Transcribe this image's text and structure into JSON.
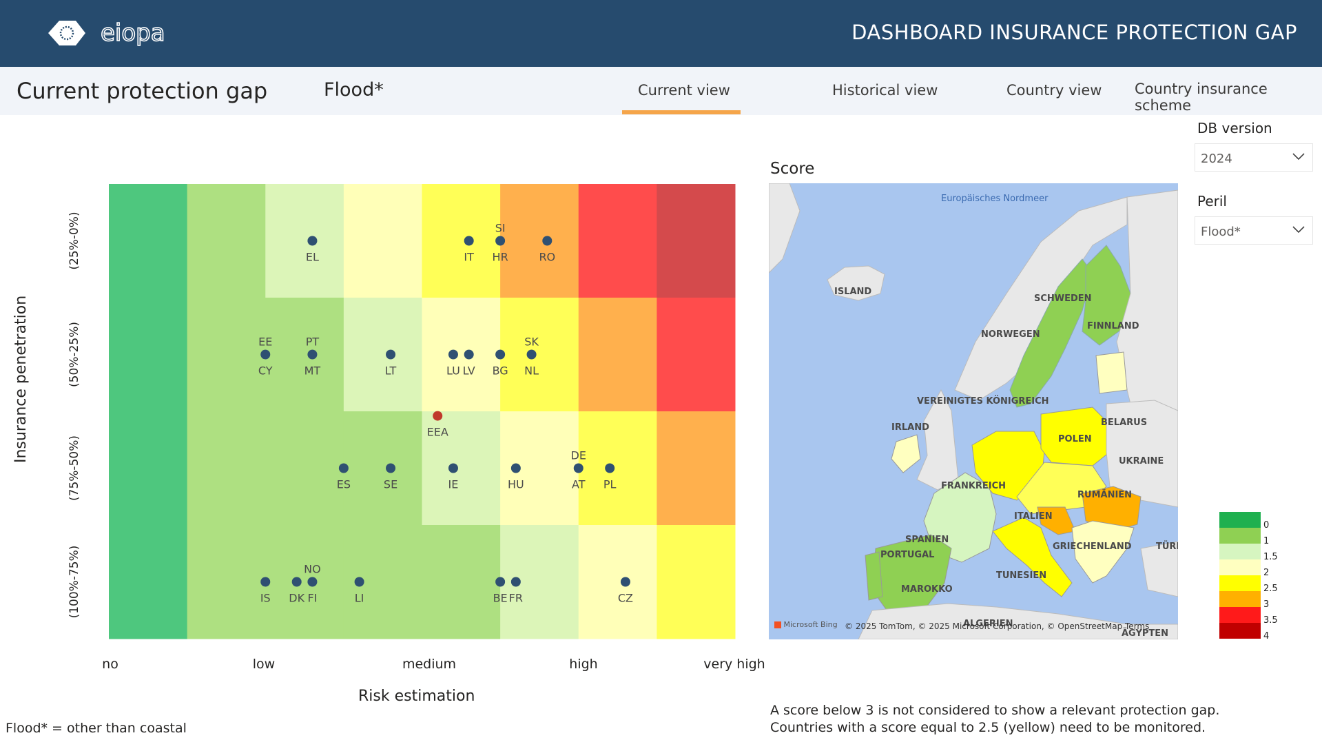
{
  "header": {
    "title": "DASHBOARD INSURANCE PROTECTION GAP",
    "logo_text": "eiopa"
  },
  "nav": {
    "page_title": "Current protection gap",
    "peril_title": "Flood*",
    "tabs": [
      {
        "label": "Current view",
        "active": true
      },
      {
        "label": "Historical view",
        "active": false
      },
      {
        "label": "Country view",
        "active": false
      },
      {
        "label": "Country insurance scheme",
        "active": false
      }
    ]
  },
  "chart_data": {
    "type": "heatmap",
    "xlabel": "Risk estimation",
    "ylabel": "Insurance penetration",
    "x_ticks": [
      "no",
      "low",
      "medium",
      "high",
      "very high"
    ],
    "y_ticks": [
      "(25%-0%)",
      "(50%-25%)",
      "(75%-50%)",
      "(100%-75%)"
    ],
    "colors": {
      "0": "#4ec77e",
      "1": "#aee081",
      "1.5": "#dcf5b8",
      "2": "#ffffb8",
      "2.5": "#ffff57",
      "3": "#ffb04d",
      "3.5": "#ff4c4c",
      "4": "#d44a4c"
    },
    "grid_rows": [
      [
        0,
        1,
        1.5,
        2,
        2.5,
        3,
        3.5,
        4
      ],
      [
        0,
        1,
        1,
        1.5,
        2,
        2.5,
        3,
        3.5
      ],
      [
        0,
        1,
        1,
        1,
        1.5,
        2,
        2.5,
        3
      ],
      [
        0,
        1,
        1,
        1,
        1,
        1.5,
        2,
        2.5
      ]
    ],
    "x_range": [
      0,
      8
    ],
    "y_range": [
      0,
      4
    ],
    "points": [
      {
        "above": "",
        "below": "EL",
        "x": 2.6,
        "y": 3.5
      },
      {
        "above": "",
        "below": "IT",
        "x": 4.6,
        "y": 3.5
      },
      {
        "above": "SI",
        "below": "HR",
        "x": 5.0,
        "y": 3.5
      },
      {
        "above": "",
        "below": "RO",
        "x": 5.6,
        "y": 3.5
      },
      {
        "above": "EE",
        "below": "CY",
        "x": 2.0,
        "y": 2.5
      },
      {
        "above": "PT",
        "below": "MT",
        "x": 2.6,
        "y": 2.5
      },
      {
        "above": "",
        "below": "LT",
        "x": 3.6,
        "y": 2.5
      },
      {
        "above": "",
        "below": "LU",
        "x": 4.4,
        "y": 2.5
      },
      {
        "above": "",
        "below": "LV",
        "x": 4.6,
        "y": 2.5
      },
      {
        "above": "",
        "below": "BG",
        "x": 5.0,
        "y": 2.5
      },
      {
        "above": "SK",
        "below": "NL",
        "x": 5.4,
        "y": 2.5
      },
      {
        "above": "",
        "below": "EEA",
        "x": 4.2,
        "y": 1.96,
        "highlight": true
      },
      {
        "above": "",
        "below": "ES",
        "x": 3.0,
        "y": 1.5
      },
      {
        "above": "",
        "below": "SE",
        "x": 3.6,
        "y": 1.5
      },
      {
        "above": "",
        "below": "IE",
        "x": 4.4,
        "y": 1.5
      },
      {
        "above": "",
        "below": "HU",
        "x": 5.2,
        "y": 1.5
      },
      {
        "above": "DE",
        "below": "AT",
        "x": 6.0,
        "y": 1.5
      },
      {
        "above": "",
        "below": "PL",
        "x": 6.4,
        "y": 1.5
      },
      {
        "above": "",
        "below": "IS",
        "x": 2.0,
        "y": 0.5
      },
      {
        "above": "",
        "below": "DK",
        "x": 2.4,
        "y": 0.5
      },
      {
        "above": "NO",
        "below": "FI",
        "x": 2.6,
        "y": 0.5
      },
      {
        "above": "",
        "below": "LI",
        "x": 3.2,
        "y": 0.5
      },
      {
        "above": "",
        "below": "BE",
        "x": 5.0,
        "y": 0.5
      },
      {
        "above": "",
        "below": "FR",
        "x": 5.2,
        "y": 0.5
      },
      {
        "above": "",
        "below": "CZ",
        "x": 6.6,
        "y": 0.5
      }
    ],
    "point_color": "#2f5072",
    "highlight_color": "#c0392b"
  },
  "footnote": "Flood* = other than coastal",
  "map": {
    "title": "Score",
    "sea_label": "Europäisches Nordmeer",
    "labels": {
      "island": "ISLAND",
      "schweden": "SCHWEDEN",
      "finnland": "FINNLAND",
      "norwegen": "NORWEGEN",
      "uk": "VEREINIGTES KÖNIGREICH",
      "irland": "IRLAND",
      "belarus": "BELARUS",
      "polen": "POLEN",
      "ukraine": "UKRAINE",
      "frankreich": "FRANKREICH",
      "rumaenien": "RUMÄNIEN",
      "italien": "ITALIEN",
      "spanien": "SPANIEN",
      "portugal": "PORTUGAL",
      "griechenland": "GRIECHENLAND",
      "tuerkei": "TÜRK",
      "tunesien": "TUNESIEN",
      "marokko": "MAROKKO",
      "algerien": "ALGERIEN",
      "aegypten": "ÄGYPTEN"
    },
    "bing": "Microsoft Bing",
    "copyright": "© 2025 TomTom, © 2025 Microsoft Corporation, © OpenStreetMap  Terms"
  },
  "legend": {
    "items": [
      {
        "label": "0",
        "color": "#1fb04f"
      },
      {
        "label": "1",
        "color": "#8fd053"
      },
      {
        "label": "1.5",
        "color": "#d6f5c0"
      },
      {
        "label": "2",
        "color": "#ffffc0"
      },
      {
        "label": "2.5",
        "color": "#ffff00"
      },
      {
        "label": "3",
        "color": "#ffb000"
      },
      {
        "label": "3.5",
        "color": "#ff1a1a"
      },
      {
        "label": "4",
        "color": "#c00000"
      }
    ]
  },
  "notes": {
    "line1": "A score below 3 is not considered to show a relevant protection gap.",
    "line2": "Countries with a score equal to 2.5 (yellow) need to be monitored."
  },
  "slicers": {
    "db_version_label": "DB version",
    "db_version_value": "2024",
    "peril_label": "Peril",
    "peril_value": "Flood*"
  }
}
